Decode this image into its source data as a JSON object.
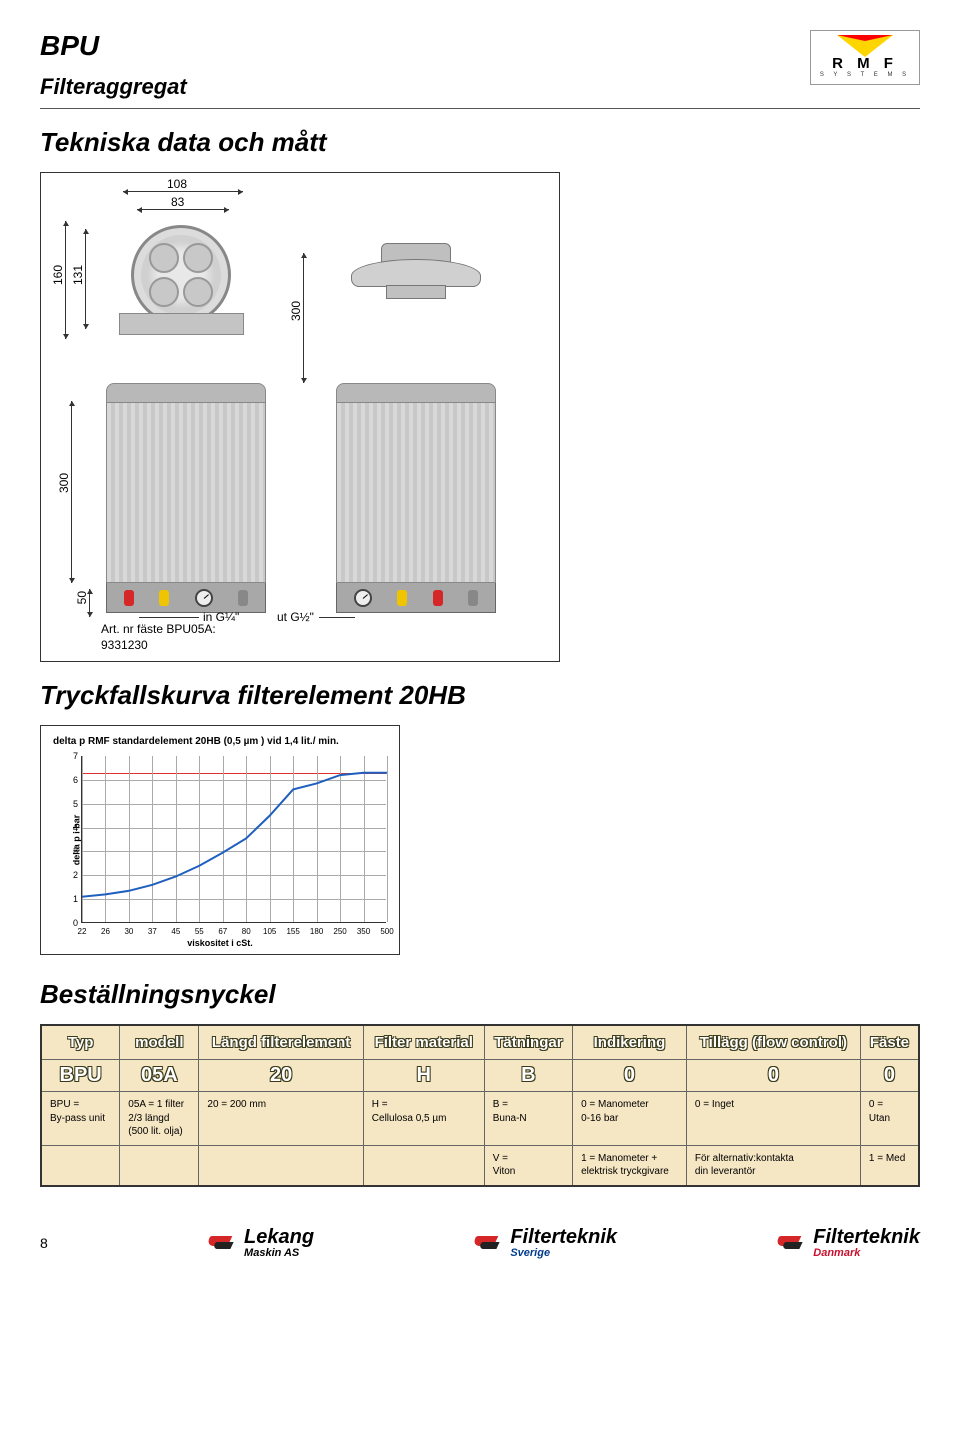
{
  "header": {
    "title": "BPU",
    "subtitle": "Filteraggregat",
    "logo": {
      "brand_letters": "R M F",
      "brand_sub": "S Y S T E M S"
    },
    "reg_mark": "®"
  },
  "section1": {
    "heading": "Tekniska data och mått"
  },
  "diagram": {
    "dims": {
      "d108": "108",
      "d83": "83",
      "d160": "160",
      "d131": "131",
      "d300a": "300",
      "d300b": "300",
      "d50": "50"
    },
    "ports": {
      "in": "in G¼\"",
      "out": "ut G½\""
    },
    "art_note_l1": "Art. nr fäste BPU05A:",
    "art_note_l2": "9331230"
  },
  "section2": {
    "heading": "Tryckfallskurva filterelement 20HB"
  },
  "chart": {
    "title": "delta p  RMF standardelement 20HB (0,5 µm ) vid 1,4 lit./ min.",
    "ylabel": "delta p  i bar",
    "xlabel": "viskositet i cSt.",
    "y_max": 7,
    "y_ticks": [
      "0",
      "1",
      "2",
      "3",
      "4",
      "5",
      "6",
      "7"
    ],
    "red_value": 6.3,
    "x_ticks": [
      "22",
      "26",
      "30",
      "37",
      "45",
      "55",
      "67",
      "80",
      "105",
      "155",
      "180",
      "250",
      "350",
      "500"
    ],
    "series_values": [
      1.1,
      1.2,
      1.35,
      1.6,
      1.95,
      2.4,
      2.95,
      3.55,
      4.5,
      5.6,
      5.85,
      6.2,
      6.3,
      6.3
    ],
    "line_color": "#1f5fbf",
    "grid_color": "#aaaaaa"
  },
  "section3": {
    "heading": "Beställningsnyckel"
  },
  "order": {
    "headers": [
      "Typ",
      "modell",
      "Längd filterelement",
      "Filter material",
      "Tätningar",
      "Indikering",
      "Tillägg (flow control)",
      "Fäste"
    ],
    "codes": [
      "BPU",
      "05A",
      "20",
      "H",
      "B",
      "0",
      "0",
      "0"
    ],
    "desc_row1": [
      "BPU =\nBy-pass unit",
      "05A = 1 filter\n2/3 längd\n(500 lit. olja)",
      "20 = 200 mm",
      "H =\nCellulosa 0,5 µm",
      "B =\nBuna-N",
      "0 = Manometer\n0-16 bar",
      "0 = Inget",
      "0 =\nUtan"
    ],
    "desc_row2": [
      "",
      "",
      "",
      "",
      "V =\nViton",
      "1 = Manometer +\nelektrisk tryckgivare",
      "För alternativ:kontakta\ndin leverantör",
      "1 = Med"
    ],
    "bg_color": "#f5e6c4"
  },
  "footer": {
    "page_num": "8",
    "brands": {
      "lekang": {
        "main": "Lekang",
        "sub": "Maskin AS"
      },
      "filterteknik_sv": {
        "main": "Filterteknik",
        "sub": "Sverige"
      },
      "filterteknik_dk": {
        "main": "Filterteknik",
        "sub": "Danmark"
      }
    }
  }
}
